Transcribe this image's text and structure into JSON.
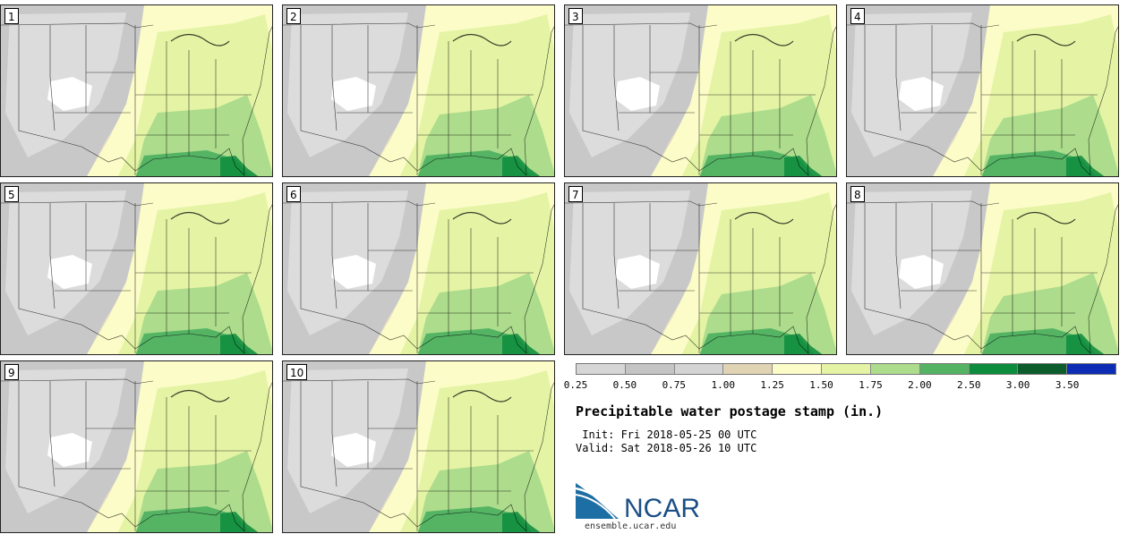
{
  "title": "Precipitable water postage stamp (in.)",
  "init": "Init: Fri 2018-05-25 00 UTC",
  "valid": "Valid: Sat 2018-05-26 10 UTC",
  "members": [
    "1",
    "2",
    "3",
    "4",
    "5",
    "6",
    "7",
    "8",
    "9",
    "10"
  ],
  "colorbar": {
    "ticks": [
      "0.25",
      "0.50",
      "0.75",
      "1.00",
      "1.25",
      "1.50",
      "1.75",
      "2.00",
      "2.50",
      "3.00",
      "3.50"
    ],
    "colors": [
      "#d6d6d6",
      "#c4c4c4",
      "#d4d4d4",
      "#e0d4b4",
      "#fcfcc8",
      "#e4f4a4",
      "#acdc8c",
      "#54b464",
      "#0c8c3c",
      "#0c5c2c",
      "#0c2cb4"
    ]
  },
  "logo": {
    "text": "NCAR",
    "url": "ensemble.ucar.edu"
  },
  "palette": {
    "ocean_tan": "#e6dcc4",
    "gray_dry": "#c8c8c8",
    "gray_light": "#dcdcdc",
    "white_dry": "#ffffff",
    "cream": "#fcfcc8",
    "light_green": "#e4f4a4",
    "mid_green": "#acdc8c",
    "green": "#54b464",
    "dark_green": "#0c8c3c",
    "brand_blue": "#1c6ea4"
  }
}
